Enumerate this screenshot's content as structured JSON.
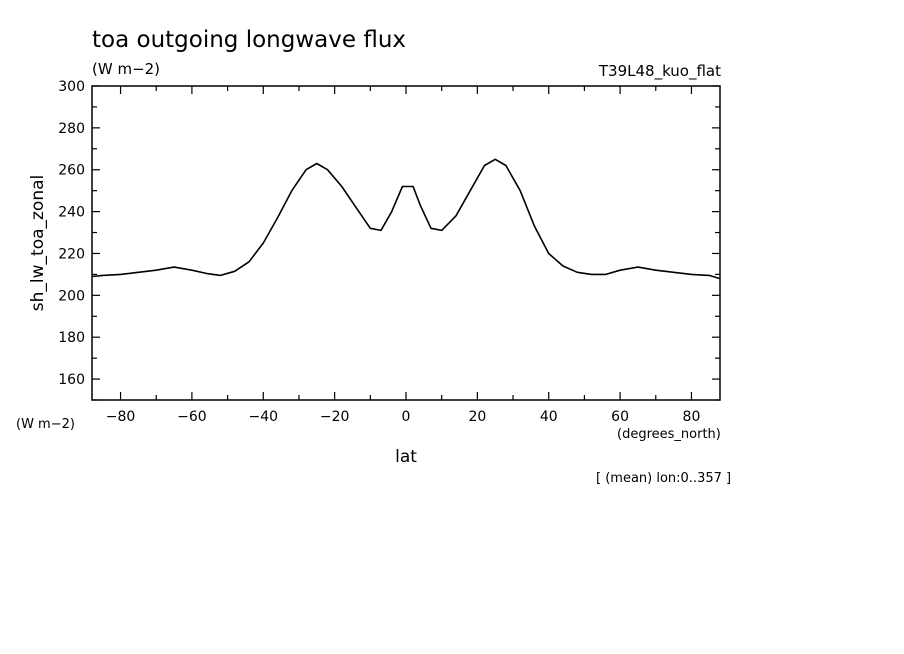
{
  "chart_data": {
    "type": "line",
    "title": "toa outgoing longwave flux",
    "units": "(W m−2)",
    "run_label": "T39L48_kuo_flat",
    "ylabel": "sh_lw_toa_zonal",
    "y_units_label": "(W m−2)",
    "xlabel": "lat",
    "x_units_label": "(degrees_north)",
    "footnote": "[ (mean) lon:0..357 ]",
    "xlim": [
      -88,
      88
    ],
    "ylim": [
      150,
      300
    ],
    "x_ticks": [
      -80,
      -60,
      -40,
      -20,
      0,
      20,
      40,
      60,
      80
    ],
    "x_tick_labels": [
      "−80",
      "−60",
      "−40",
      "−20",
      "0",
      "20",
      "40",
      "60",
      "80"
    ],
    "y_ticks": [
      160,
      180,
      200,
      220,
      240,
      260,
      280,
      300
    ],
    "y_tick_labels": [
      "160",
      "180",
      "200",
      "220",
      "240",
      "260",
      "280",
      "300"
    ],
    "grid": false,
    "series": [
      {
        "x": [
          -88,
          -85,
          -80,
          -75,
          -70,
          -65,
          -60,
          -56,
          -52,
          -48,
          -44,
          -40,
          -36,
          -32,
          -28,
          -25,
          -22,
          -18,
          -14,
          -10,
          -7,
          -4,
          -1,
          2,
          4,
          7,
          10,
          14,
          18,
          22,
          25,
          28,
          32,
          36,
          40,
          44,
          48,
          52,
          56,
          60,
          65,
          70,
          75,
          80,
          85,
          88
        ],
        "y": [
          209,
          209.5,
          210,
          211,
          212,
          213.5,
          212,
          210.5,
          209.5,
          211.5,
          216,
          225,
          237,
          250,
          260,
          263,
          260,
          252,
          242,
          232,
          231,
          240,
          252,
          252,
          243,
          232,
          231,
          238,
          250,
          262,
          265,
          262,
          250,
          233,
          220,
          214,
          211,
          210,
          210,
          212,
          213.5,
          212,
          211,
          210,
          209.5,
          208
        ]
      }
    ]
  }
}
